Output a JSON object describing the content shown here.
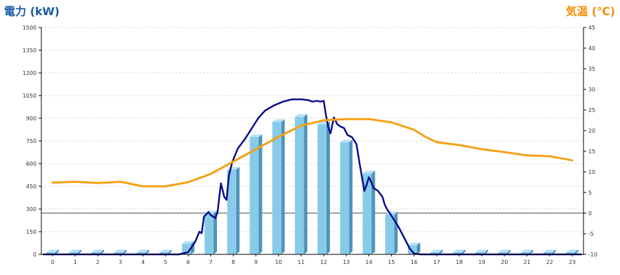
{
  "chart_data": {
    "type": "bar+line",
    "title": "",
    "left_axis": {
      "label": "電力 (kW)",
      "color": "#1a5aa8",
      "min": 0,
      "max": 1500,
      "step": 150
    },
    "right_axis": {
      "label": "気温 (℃)",
      "color": "#f08c00",
      "min": -10,
      "max": 45,
      "step": 5
    },
    "categories": [
      "0",
      "1",
      "2",
      "3",
      "4",
      "5",
      "6",
      "7",
      "8",
      "9",
      "10",
      "11",
      "12",
      "13",
      "14",
      "15",
      "16",
      "17",
      "18",
      "19",
      "20",
      "21",
      "22",
      "23"
    ],
    "grid": true,
    "reference_line_right_axis_value": 0,
    "series": [
      {
        "kind": "bar",
        "axis": "left",
        "color": "#87cbea",
        "values": [
          5,
          5,
          5,
          5,
          5,
          5,
          70,
          270,
          560,
          775,
          875,
          910,
          860,
          740,
          535,
          265,
          60,
          5,
          5,
          5,
          5,
          5,
          5,
          5
        ]
      },
      {
        "kind": "line",
        "axis": "left",
        "color": "#0a0a8c",
        "points": [
          [
            -0.4,
            0
          ],
          [
            5.6,
            0
          ],
          [
            6.0,
            15
          ],
          [
            6.3,
            80
          ],
          [
            6.5,
            150
          ],
          [
            6.6,
            140
          ],
          [
            6.7,
            250
          ],
          [
            6.9,
            280
          ],
          [
            7.0,
            260
          ],
          [
            7.2,
            240
          ],
          [
            7.3,
            280
          ],
          [
            7.45,
            470
          ],
          [
            7.6,
            380
          ],
          [
            7.7,
            360
          ],
          [
            7.8,
            520
          ],
          [
            7.95,
            610
          ],
          [
            8.2,
            700
          ],
          [
            8.5,
            760
          ],
          [
            8.8,
            830
          ],
          [
            9.1,
            900
          ],
          [
            9.4,
            950
          ],
          [
            9.8,
            985
          ],
          [
            10.2,
            1010
          ],
          [
            10.6,
            1025
          ],
          [
            11.0,
            1025
          ],
          [
            11.3,
            1020
          ],
          [
            11.5,
            1010
          ],
          [
            11.7,
            1015
          ],
          [
            11.85,
            1010
          ],
          [
            12.0,
            1015
          ],
          [
            12.1,
            920
          ],
          [
            12.2,
            840
          ],
          [
            12.3,
            800
          ],
          [
            12.45,
            905
          ],
          [
            12.6,
            860
          ],
          [
            12.75,
            845
          ],
          [
            12.9,
            835
          ],
          [
            13.05,
            790
          ],
          [
            13.25,
            775
          ],
          [
            13.45,
            730
          ],
          [
            13.6,
            590
          ],
          [
            13.8,
            420
          ],
          [
            13.9,
            460
          ],
          [
            14.0,
            510
          ],
          [
            14.1,
            480
          ],
          [
            14.2,
            440
          ],
          [
            14.4,
            420
          ],
          [
            14.5,
            400
          ],
          [
            14.6,
            380
          ],
          [
            14.7,
            330
          ],
          [
            14.8,
            300
          ],
          [
            15.0,
            255
          ],
          [
            15.3,
            185
          ],
          [
            15.6,
            100
          ],
          [
            15.8,
            40
          ],
          [
            16.0,
            5
          ],
          [
            16.3,
            0
          ],
          [
            23.4,
            0
          ]
        ]
      },
      {
        "kind": "line",
        "axis": "right",
        "color": "#f5a014",
        "points": [
          [
            0,
            7.4
          ],
          [
            1,
            7.6
          ],
          [
            2,
            7.3
          ],
          [
            3,
            7.6
          ],
          [
            4,
            6.5
          ],
          [
            5,
            6.5
          ],
          [
            6,
            7.5
          ],
          [
            7,
            9.5
          ],
          [
            8,
            12.5
          ],
          [
            9,
            15.5
          ],
          [
            10,
            18.5
          ],
          [
            11,
            21.2
          ],
          [
            12,
            22.5
          ],
          [
            13,
            22.8
          ],
          [
            14,
            22.8
          ],
          [
            15,
            22.0
          ],
          [
            16,
            20.2
          ],
          [
            16.5,
            18.5
          ],
          [
            17,
            17.2
          ],
          [
            18,
            16.5
          ],
          [
            19,
            15.5
          ],
          [
            20,
            14.8
          ],
          [
            21,
            14.0
          ],
          [
            22,
            13.8
          ],
          [
            23,
            12.8
          ]
        ]
      }
    ]
  }
}
